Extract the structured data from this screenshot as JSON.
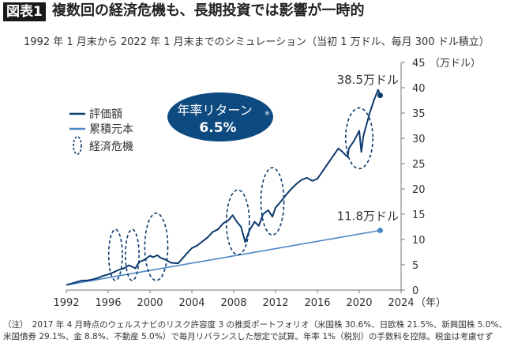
{
  "header": {
    "badge": "図表1",
    "title": "複数回の経済危機も、長期投資では影響が一時的"
  },
  "subtitle": "1992 年 1 月末から 2022 年 1 月末までのシミュレーション（当初 1 万ドル、毎月 300 ドル積立）",
  "footnote": {
    "line1": "（注）　2017 年 4 月時点のウェルスナビのリスク許容度 3 の推奨ポートフォリオ（米国株 30.6%、日欧株 21.5%、新興国株 5.0%、",
    "line2": "米国債券 29.1%、金 8.8%、不動産 5.0%）で毎月リバランスした想定で試算。年率 1%（税別）の手数料を控除。税金は考慮せず"
  },
  "colors": {
    "value": "#0d3a6e",
    "principal": "#4a86c5",
    "bubble": "#0d4a80",
    "axis": "#777777"
  },
  "chart_data": {
    "type": "line",
    "xlabel": "（年）",
    "ylabel": "（万ドル）",
    "xlim": [
      1992,
      2024
    ],
    "ylim": [
      0,
      45
    ],
    "xticks": [
      1992,
      1996,
      2000,
      2004,
      2008,
      2012,
      2016,
      2020,
      2024
    ],
    "yticks": [
      0,
      5,
      10,
      15,
      20,
      25,
      30,
      35,
      40,
      45
    ],
    "y_axis_side": "right",
    "legend": {
      "position": "left",
      "entries": [
        "評価額",
        "累積元本",
        "経済危機"
      ]
    },
    "bubble": {
      "line1": "年率リターン",
      "mark": "※",
      "line2": "6.5%"
    },
    "series": [
      {
        "name": "評価額",
        "x": [
          1992,
          1992.5,
          1993,
          1993.5,
          1994,
          1994.5,
          1995,
          1995.5,
          1996,
          1996.5,
          1997,
          1997.5,
          1998,
          1998.6,
          1998.8,
          1999,
          1999.5,
          2000,
          2000.3,
          2000.7,
          2001,
          2001.5,
          2002,
          2002.7,
          2003,
          2003.5,
          2004,
          2004.5,
          2005,
          2005.5,
          2006,
          2006.5,
          2007,
          2007.5,
          2007.9,
          2008.3,
          2008.7,
          2009.1,
          2009.5,
          2010,
          2010.4,
          2010.8,
          2011.3,
          2011.7,
          2012,
          2012.5,
          2013,
          2013.5,
          2014,
          2014.5,
          2015,
          2015.5,
          2016,
          2016.5,
          2017,
          2017.5,
          2018,
          2018.3,
          2018.9,
          2019,
          2019.5,
          2020,
          2020.2,
          2020.4,
          2020.8,
          2021,
          2021.4,
          2021.8,
          2021.9,
          2022
        ],
        "y": [
          1.0,
          1.3,
          1.6,
          1.9,
          1.9,
          2.1,
          2.4,
          2.8,
          3.1,
          3.5,
          4.0,
          4.3,
          4.9,
          4.3,
          5.0,
          5.6,
          6.0,
          6.8,
          6.5,
          6.9,
          6.4,
          6.0,
          5.4,
          5.3,
          6.0,
          7.2,
          8.3,
          8.8,
          9.6,
          10.4,
          11.5,
          12.0,
          13.2,
          13.8,
          14.8,
          13.5,
          12.5,
          9.5,
          11.8,
          13.5,
          12.7,
          15.0,
          15.8,
          14.5,
          16.3,
          17.5,
          18.8,
          20.0,
          21.0,
          21.8,
          22.2,
          21.6,
          22.0,
          23.5,
          25.0,
          26.5,
          28.0,
          27.5,
          26.3,
          28.0,
          29.5,
          31.5,
          27.3,
          30.5,
          33.5,
          35.0,
          37.5,
          39.6,
          39.0,
          38.5
        ],
        "end_label": "38.5万ドル"
      },
      {
        "name": "累積元本",
        "x": [
          1992,
          2022
        ],
        "y": [
          1.0,
          11.8
        ],
        "end_label": "11.8万ドル"
      }
    ],
    "crisis_ellipses": [
      {
        "x": 1996.7,
        "y_range": [
          1.9,
          12
        ]
      },
      {
        "x": 1998.3,
        "y_range": [
          1.9,
          12
        ]
      },
      {
        "x": 2000.6,
        "y_range": [
          1.9,
          15.2
        ]
      },
      {
        "x": 2008.4,
        "y_range": [
          7,
          19.8
        ]
      },
      {
        "x": 2011.7,
        "y_range": [
          10.9,
          24.2
        ]
      },
      {
        "x": 2020.0,
        "y_range": [
          24,
          36
        ]
      }
    ]
  }
}
